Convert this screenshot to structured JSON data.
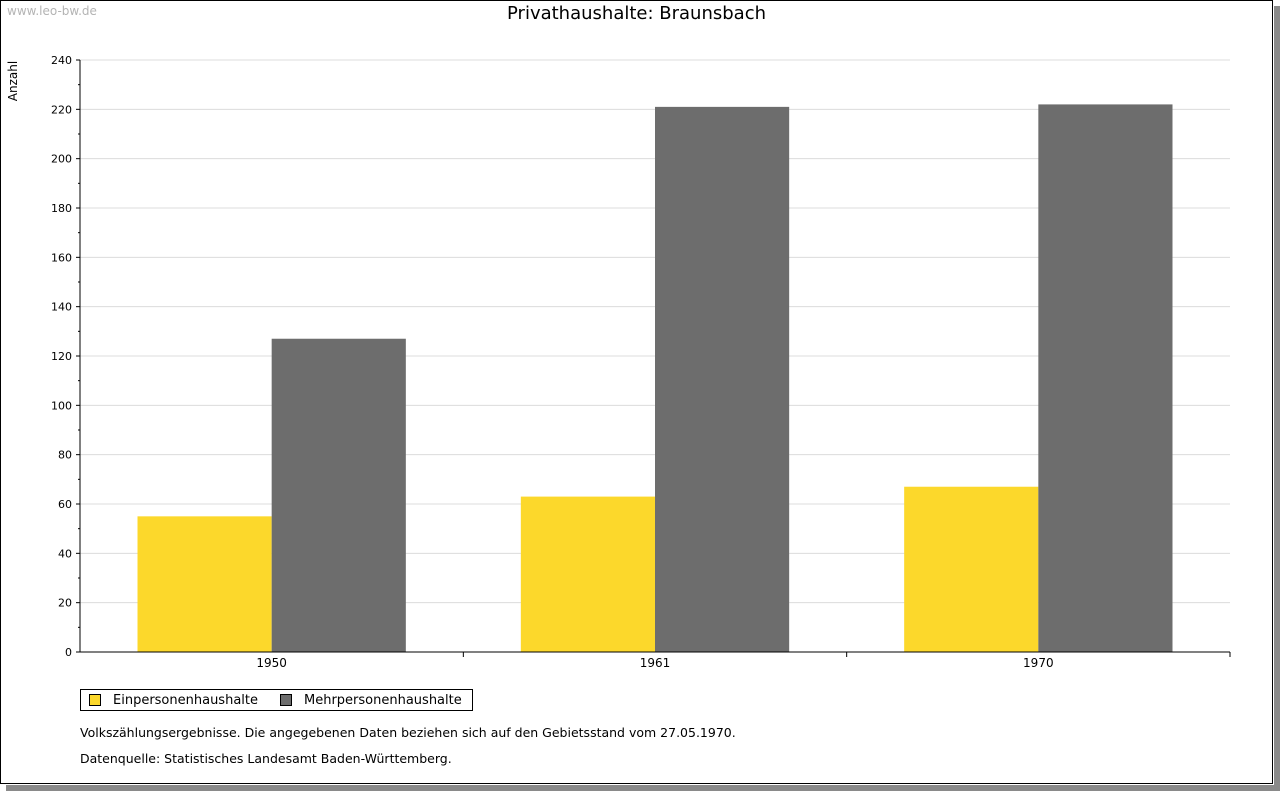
{
  "watermark": "www.leo-bw.de",
  "colors": {
    "einpersonen": "#fcd82b",
    "mehrpersonen": "#6d6d6d"
  },
  "chart_data": {
    "type": "bar",
    "title": "Privathaushalte: Braunsbach",
    "ylabel": "Anzahl",
    "xlabel": "",
    "categories": [
      "1950",
      "1961",
      "1970"
    ],
    "ylim": [
      0,
      240
    ],
    "yticks": [
      0,
      20,
      40,
      60,
      80,
      100,
      120,
      140,
      160,
      180,
      200,
      220,
      240
    ],
    "grid": true,
    "legend_position": "bottom-left",
    "series": [
      {
        "name": "Einpersonenhaushalte",
        "values": [
          55,
          63,
          67
        ]
      },
      {
        "name": "Mehrpersonenhaushalte",
        "values": [
          127,
          221,
          222
        ]
      }
    ]
  },
  "notes": {
    "line1": "Volkszählungsergebnisse. Die angegebenen Daten beziehen sich auf den Gebietsstand vom 27.05.1970.",
    "line2": "Datenquelle: Statistisches Landesamt Baden-Württemberg."
  }
}
